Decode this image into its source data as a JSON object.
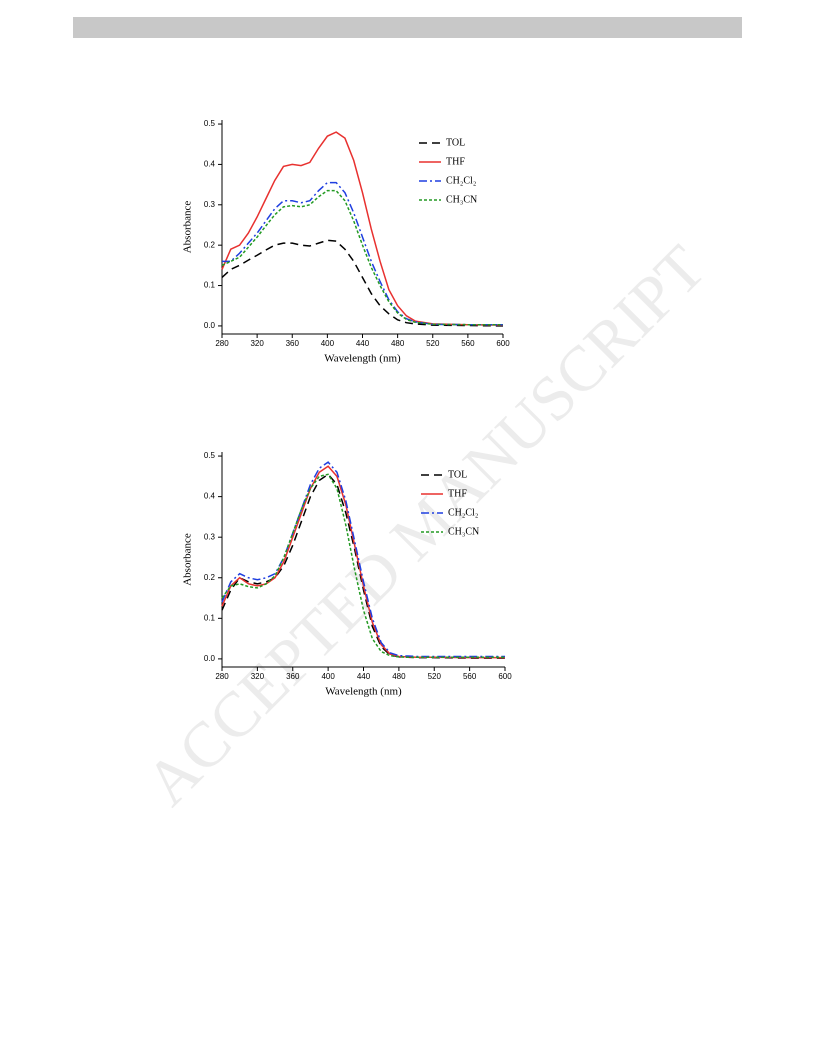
{
  "watermark": "ACCEPTED MANUSCRIPT",
  "chart_data": [
    {
      "type": "line",
      "xlabel": "Wavelength (nm)",
      "ylabel": "Absorbance",
      "x": [
        280,
        290,
        300,
        310,
        320,
        330,
        340,
        350,
        360,
        370,
        380,
        390,
        400,
        410,
        420,
        430,
        440,
        450,
        460,
        470,
        480,
        490,
        500,
        520,
        560,
        600
      ],
      "xlim": [
        280,
        600
      ],
      "xticks": [
        280,
        320,
        360,
        400,
        440,
        480,
        520,
        560,
        600
      ],
      "ylim": [
        -0.02,
        0.51
      ],
      "yticks": [
        {
          "value": 0,
          "label": "0.0"
        },
        0.1,
        0.2,
        0.3,
        0.4,
        0.5
      ],
      "legend": "upper right",
      "grid": false,
      "series": [
        {
          "name": "TOL",
          "color": "#000000",
          "dash": "dash",
          "values": [
            0.12,
            0.14,
            0.15,
            0.163,
            0.175,
            0.188,
            0.2,
            0.205,
            0.205,
            0.2,
            0.198,
            0.205,
            0.212,
            0.21,
            0.19,
            0.16,
            0.12,
            0.08,
            0.05,
            0.03,
            0.015,
            0.008,
            0.005,
            0.002,
            0.001,
            0
          ]
        },
        {
          "name": "THF",
          "color": "#e8312f",
          "dash": "solid",
          "values": [
            0.14,
            0.19,
            0.2,
            0.23,
            0.27,
            0.315,
            0.36,
            0.395,
            0.4,
            0.397,
            0.405,
            0.44,
            0.47,
            0.48,
            0.465,
            0.41,
            0.33,
            0.24,
            0.16,
            0.09,
            0.05,
            0.025,
            0.012,
            0.005,
            0.003,
            0.002
          ]
        },
        {
          "name": "CH₂Cl₂",
          "color": "#1f3fe0",
          "dash": "dashdot",
          "values": [
            0.16,
            0.16,
            0.18,
            0.205,
            0.23,
            0.26,
            0.29,
            0.31,
            0.31,
            0.305,
            0.31,
            0.335,
            0.355,
            0.355,
            0.33,
            0.28,
            0.22,
            0.16,
            0.11,
            0.065,
            0.035,
            0.018,
            0.01,
            0.004,
            0.003,
            0.003
          ]
        },
        {
          "name": "CH₃CN",
          "color": "#239a23",
          "dash": "dot",
          "values": [
            0.15,
            0.16,
            0.17,
            0.195,
            0.22,
            0.248,
            0.275,
            0.295,
            0.298,
            0.295,
            0.3,
            0.32,
            0.335,
            0.335,
            0.31,
            0.26,
            0.2,
            0.145,
            0.1,
            0.06,
            0.032,
            0.016,
            0.009,
            0.004,
            0.003,
            0.003
          ]
        }
      ]
    },
    {
      "type": "line",
      "xlabel": "Wavelength (nm)",
      "ylabel": "Absorbance",
      "x": [
        280,
        290,
        300,
        310,
        320,
        330,
        340,
        350,
        360,
        370,
        380,
        390,
        400,
        410,
        420,
        430,
        440,
        450,
        460,
        470,
        480,
        490,
        500,
        520,
        560,
        600
      ],
      "xlim": [
        280,
        600
      ],
      "xticks": [
        280,
        320,
        360,
        400,
        440,
        480,
        520,
        560,
        600
      ],
      "ylim": [
        -0.02,
        0.51
      ],
      "yticks": [
        {
          "value": 0,
          "label": "0.0"
        },
        0.1,
        0.2,
        0.3,
        0.4,
        0.5
      ],
      "legend": "upper right",
      "grid": false,
      "series": [
        {
          "name": "TOL",
          "color": "#000000",
          "dash": "dash",
          "values": [
            0.12,
            0.17,
            0.2,
            0.19,
            0.185,
            0.19,
            0.2,
            0.23,
            0.28,
            0.34,
            0.4,
            0.44,
            0.455,
            0.43,
            0.36,
            0.27,
            0.17,
            0.08,
            0.03,
            0.01,
            0.005,
            0.004,
            0.003,
            0.003,
            0.002,
            0.002
          ]
        },
        {
          "name": "THF",
          "color": "#e8312f",
          "dash": "solid",
          "values": [
            0.13,
            0.18,
            0.2,
            0.185,
            0.18,
            0.185,
            0.2,
            0.24,
            0.3,
            0.36,
            0.42,
            0.46,
            0.475,
            0.45,
            0.38,
            0.28,
            0.18,
            0.09,
            0.035,
            0.012,
            0.006,
            0.005,
            0.004,
            0.004,
            0.003,
            0.003
          ]
        },
        {
          "name": "CH₂Cl₂",
          "color": "#1f3fe0",
          "dash": "dashdot",
          "values": [
            0.14,
            0.19,
            0.21,
            0.2,
            0.195,
            0.2,
            0.21,
            0.25,
            0.31,
            0.37,
            0.43,
            0.47,
            0.485,
            0.46,
            0.39,
            0.29,
            0.19,
            0.1,
            0.04,
            0.015,
            0.008,
            0.007,
            0.006,
            0.006,
            0.006,
            0.006
          ]
        },
        {
          "name": "CH₃CN",
          "color": "#239a23",
          "dash": "dot",
          "values": [
            0.15,
            0.18,
            0.185,
            0.178,
            0.175,
            0.185,
            0.205,
            0.25,
            0.31,
            0.37,
            0.42,
            0.45,
            0.455,
            0.42,
            0.33,
            0.22,
            0.12,
            0.05,
            0.018,
            0.008,
            0.005,
            0.004,
            0.004,
            0.004,
            0.004,
            0.004
          ]
        }
      ]
    }
  ]
}
